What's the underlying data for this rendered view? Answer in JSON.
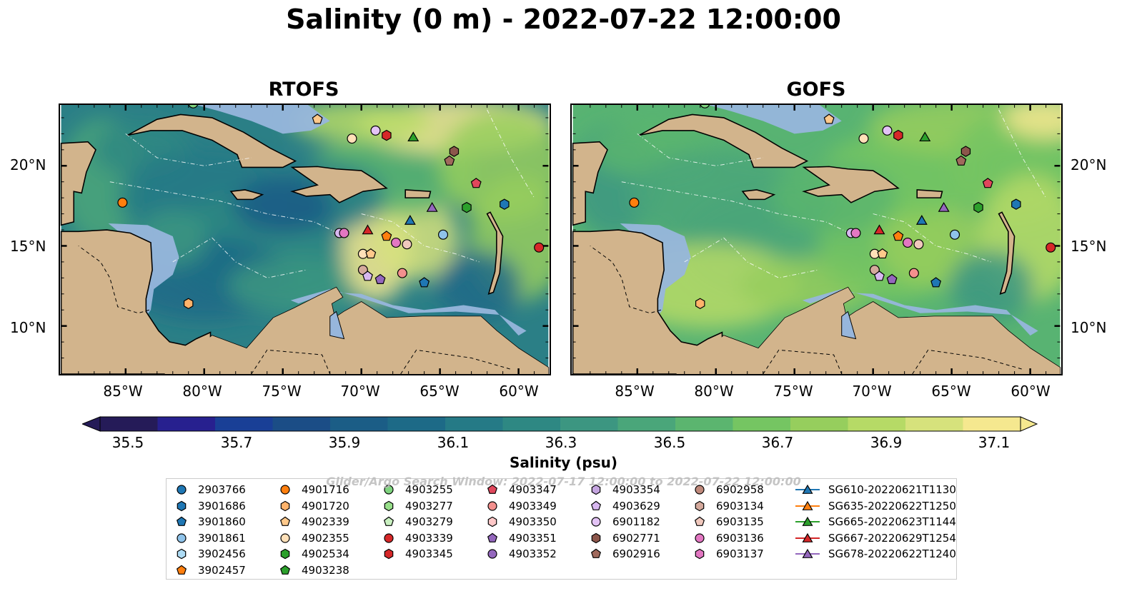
{
  "title": "Salinity (0 m) - 2022-07-22 12:00:00",
  "panels": [
    {
      "title": "RTOFS"
    },
    {
      "title": "GOFS"
    }
  ],
  "lat_ticks": [
    "20°N",
    "15°N",
    "10°N"
  ],
  "lon_ticks": [
    "85°W",
    "80°W",
    "75°W",
    "70°W",
    "65°W",
    "60°W"
  ],
  "colorbar": {
    "title": "Salinity (psu)",
    "ticks": [
      "35.5",
      "35.7",
      "35.9",
      "36.1",
      "36.3",
      "36.5",
      "36.7",
      "36.9",
      "37.1"
    ],
    "min": 35.5,
    "max": 37.1,
    "colors": [
      "#251b58",
      "#27208f",
      "#193f96",
      "#1b4d86",
      "#1b5d86",
      "#1d6a87",
      "#257a86",
      "#2e8883",
      "#3c9681",
      "#4aa67a",
      "#5bb56f",
      "#75c562",
      "#96ce5d",
      "#b6da66",
      "#d6e27c",
      "#f5e88f"
    ]
  },
  "watermark": "Glider/Argo Search Window: 2022-07-17 12:00:00 to 2022-07-22 12:00:00",
  "legend": [
    {
      "label": "2903766",
      "color": "#1f77b4",
      "shape": "circle"
    },
    {
      "label": "3901686",
      "color": "#1f77b4",
      "shape": "hexagon"
    },
    {
      "label": "3901860",
      "color": "#1f77b4",
      "shape": "pentagon"
    },
    {
      "label": "3901861",
      "color": "#8fc3ea",
      "shape": "circle"
    },
    {
      "label": "3902456",
      "color": "#aedcf5",
      "shape": "hexagon"
    },
    {
      "label": "3902457",
      "color": "#ff7f0e",
      "shape": "pentagon"
    },
    {
      "label": "4901716",
      "color": "#ff7f0e",
      "shape": "circle"
    },
    {
      "label": "4901720",
      "color": "#ffb36b",
      "shape": "hexagon"
    },
    {
      "label": "4902339",
      "color": "#ffc98b",
      "shape": "pentagon"
    },
    {
      "label": "4902355",
      "color": "#ffe0b8",
      "shape": "circle"
    },
    {
      "label": "4902534",
      "color": "#2ca02c",
      "shape": "hexagon"
    },
    {
      "label": "4903238",
      "color": "#2ca02c",
      "shape": "pentagon"
    },
    {
      "label": "4903255",
      "color": "#7fd47f",
      "shape": "circle"
    },
    {
      "label": "4903277",
      "color": "#98df8a",
      "shape": "hexagon"
    },
    {
      "label": "4903279",
      "color": "#c9f0c0",
      "shape": "pentagon"
    },
    {
      "label": "4903339",
      "color": "#d62728",
      "shape": "circle"
    },
    {
      "label": "4903345",
      "color": "#d62728",
      "shape": "hexagon"
    },
    {
      "label": "4903347",
      "color": "#e0475c",
      "shape": "pentagon"
    },
    {
      "label": "4903349",
      "color": "#f4908e",
      "shape": "circle"
    },
    {
      "label": "4903350",
      "color": "#ffc8c8",
      "shape": "hexagon"
    },
    {
      "label": "4903351",
      "color": "#9467bd",
      "shape": "pentagon"
    },
    {
      "label": "4903352",
      "color": "#9467bd",
      "shape": "circle"
    },
    {
      "label": "4903354",
      "color": "#c5a5e0",
      "shape": "hexagon"
    },
    {
      "label": "4903629",
      "color": "#d8b8f0",
      "shape": "pentagon"
    },
    {
      "label": "6901182",
      "color": "#e3c3f5",
      "shape": "circle"
    },
    {
      "label": "6902771",
      "color": "#8c564b",
      "shape": "hexagon"
    },
    {
      "label": "6902916",
      "color": "#a0695c",
      "shape": "pentagon"
    },
    {
      "label": "6902958",
      "color": "#c08a7c",
      "shape": "circle"
    },
    {
      "label": "6903134",
      "color": "#d4a99c",
      "shape": "hexagon"
    },
    {
      "label": "6903135",
      "color": "#f0c8bd",
      "shape": "pentagon"
    },
    {
      "label": "6903136",
      "color": "#e377c2",
      "shape": "circle"
    },
    {
      "label": "6903137",
      "color": "#e377c2",
      "shape": "hexagon"
    },
    {
      "label": "SG610-20220621T1130",
      "color": "#1f77b4",
      "shape": "triangle"
    },
    {
      "label": "SG635-20220622T1250",
      "color": "#ff7f0e",
      "shape": "triangle"
    },
    {
      "label": "SG665-20220623T1144",
      "color": "#2ca02c",
      "shape": "triangle"
    },
    {
      "label": "SG667-20220629T1254",
      "color": "#d62728",
      "shape": "triangle"
    },
    {
      "label": "SG678-20220622T1240",
      "color": "#9467bd",
      "shape": "triangle"
    }
  ],
  "markers": [
    {
      "lon": -85.2,
      "lat": 17.7,
      "color": "#ff7f0e",
      "shape": "circle"
    },
    {
      "lon": -81.0,
      "lat": 11.4,
      "color": "#ffb36b",
      "shape": "hexagon"
    },
    {
      "lon": -72.8,
      "lat": 22.9,
      "color": "#ffc98b",
      "shape": "pentagon"
    },
    {
      "lon": -70.6,
      "lat": 21.7,
      "color": "#ffe0b8",
      "shape": "circle"
    },
    {
      "lon": -69.1,
      "lat": 22.2,
      "color": "#e3c3f5",
      "shape": "circle"
    },
    {
      "lon": -68.4,
      "lat": 21.9,
      "color": "#d62728",
      "shape": "hexagon"
    },
    {
      "lon": -66.7,
      "lat": 21.8,
      "color": "#2ca02c",
      "shape": "triangle"
    },
    {
      "lon": -64.4,
      "lat": 20.3,
      "color": "#a0695c",
      "shape": "pentagon"
    },
    {
      "lon": -64.1,
      "lat": 20.9,
      "color": "#8c564b",
      "shape": "hexagon"
    },
    {
      "lon": -62.7,
      "lat": 18.9,
      "color": "#e0475c",
      "shape": "pentagon"
    },
    {
      "lon": -63.3,
      "lat": 17.4,
      "color": "#2ca02c",
      "shape": "hexagon"
    },
    {
      "lon": -60.9,
      "lat": 17.6,
      "color": "#1f77b4",
      "shape": "hexagon"
    },
    {
      "lon": -65.5,
      "lat": 17.4,
      "color": "#9467bd",
      "shape": "triangle"
    },
    {
      "lon": -66.9,
      "lat": 16.6,
      "color": "#1f77b4",
      "shape": "triangle"
    },
    {
      "lon": -64.8,
      "lat": 15.7,
      "color": "#8fc3ea",
      "shape": "circle"
    },
    {
      "lon": -58.7,
      "lat": 14.9,
      "color": "#d62728",
      "shape": "circle"
    },
    {
      "lon": -69.6,
      "lat": 16.0,
      "color": "#d62728",
      "shape": "triangle"
    },
    {
      "lon": -68.4,
      "lat": 15.6,
      "color": "#ff7f0e",
      "shape": "pentagon"
    },
    {
      "lon": -71.4,
      "lat": 15.8,
      "color": "#d8b8f0",
      "shape": "circle"
    },
    {
      "lon": -71.1,
      "lat": 15.8,
      "color": "#e377c2",
      "shape": "circle"
    },
    {
      "lon": -67.8,
      "lat": 15.2,
      "color": "#e377c2",
      "shape": "circle"
    },
    {
      "lon": -67.1,
      "lat": 15.1,
      "color": "#f0c8bd",
      "shape": "circle"
    },
    {
      "lon": -69.9,
      "lat": 14.5,
      "color": "#ffe0b8",
      "shape": "circle"
    },
    {
      "lon": -69.4,
      "lat": 14.5,
      "color": "#ffc98b",
      "shape": "pentagon"
    },
    {
      "lon": -69.9,
      "lat": 13.5,
      "color": "#d4a99c",
      "shape": "circle"
    },
    {
      "lon": -69.6,
      "lat": 13.1,
      "color": "#d8b8f0",
      "shape": "pentagon"
    },
    {
      "lon": -68.8,
      "lat": 12.9,
      "color": "#9467bd",
      "shape": "pentagon"
    },
    {
      "lon": -67.4,
      "lat": 13.3,
      "color": "#f4908e",
      "shape": "circle"
    },
    {
      "lon": -66.0,
      "lat": 12.7,
      "color": "#1f77b4",
      "shape": "pentagon"
    },
    {
      "lon": -80.7,
      "lat": 23.9,
      "color": "#7fd47f",
      "shape": "circle"
    }
  ]
}
